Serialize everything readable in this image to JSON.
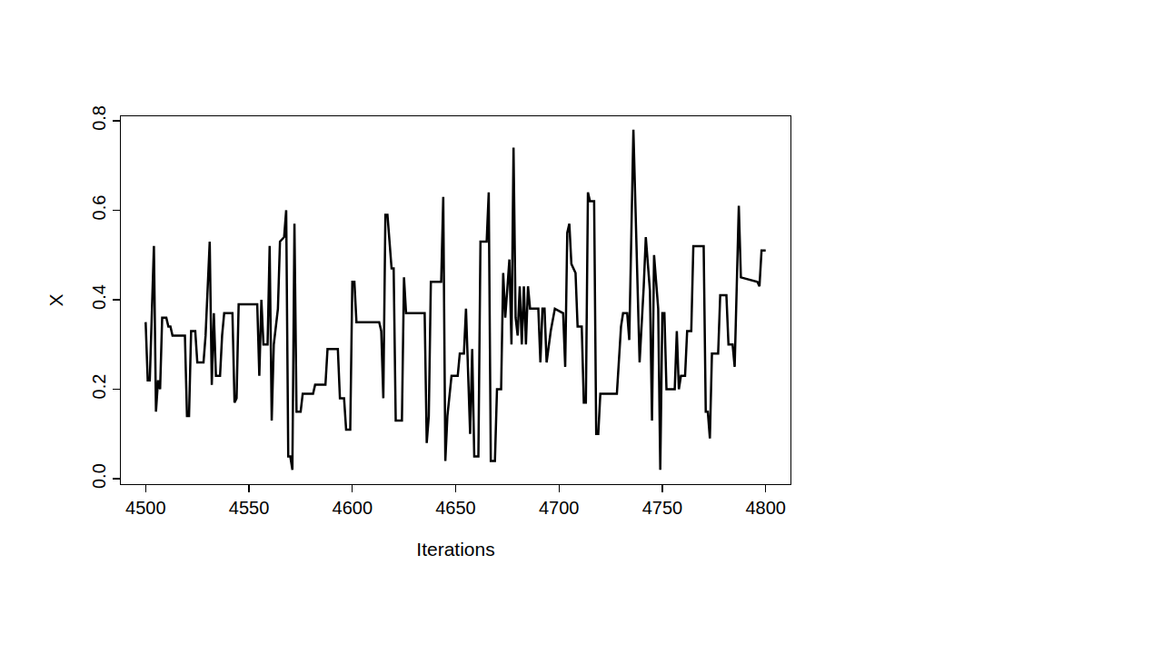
{
  "chart_data": {
    "type": "line",
    "x_label": "Iterations",
    "y_label": "X",
    "color": "#000000",
    "grid": false,
    "xlim": [
      4488,
      4812
    ],
    "ylim": [
      -0.012,
      0.81
    ],
    "xticks": [
      4500,
      4550,
      4600,
      4650,
      4700,
      4750,
      4800
    ],
    "yticks": [
      {
        "value": 0,
        "label": "0.0"
      },
      0.2,
      0.4,
      0.6,
      0.8
    ],
    "x": [
      4500,
      4501,
      4502,
      4504,
      4505,
      4506,
      4507,
      4508,
      4510,
      4511,
      4512,
      4513,
      4519,
      4520,
      4521,
      4522,
      4524,
      4525,
      4528,
      4529,
      4531,
      4532,
      4533,
      4534,
      4536,
      4537,
      4538,
      4542,
      4543,
      4544,
      4545,
      4554,
      4555,
      4556,
      4557,
      4559,
      4560,
      4561,
      4562,
      4564,
      4565,
      4567,
      4568,
      4569,
      4570,
      4571,
      4572,
      4573,
      4575,
      4576,
      4581,
      4582,
      4587,
      4588,
      4593,
      4594,
      4596,
      4597,
      4599,
      4600,
      4601,
      4602,
      4613,
      4614,
      4615,
      4616,
      4617,
      4619,
      4620,
      4621,
      4624,
      4625,
      4626,
      4635,
      4636,
      4637,
      4638,
      4643,
      4644,
      4645,
      4646,
      4648,
      4651,
      4652,
      4654,
      4655,
      4657,
      4658,
      4659,
      4661,
      4662,
      4665,
      4666,
      4667,
      4669,
      4670,
      4672,
      4673,
      4674,
      4676,
      4677,
      4678,
      4679,
      4680,
      4681,
      4682,
      4683,
      4684,
      4685,
      4686,
      4690,
      4691,
      4692,
      4693,
      4694,
      4695,
      4696,
      4698,
      4702,
      4703,
      4704,
      4705,
      4706,
      4708,
      4709,
      4711,
      4712,
      4713,
      4714,
      4715,
      4717,
      4718,
      4719,
      4720,
      4728,
      4730,
      4731,
      4733,
      4734,
      4736,
      4738,
      4739,
      4741,
      4742,
      4744,
      4745,
      4746,
      4748,
      4749,
      4750,
      4751,
      4752,
      4756,
      4757,
      4758,
      4759,
      4761,
      4762,
      4764,
      4765,
      4770,
      4771,
      4772,
      4773,
      4774,
      4777,
      4778,
      4781,
      4782,
      4784,
      4785,
      4787,
      4788,
      4796,
      4797,
      4798,
      4800
    ],
    "values": [
      0.35,
      0.22,
      0.22,
      0.52,
      0.15,
      0.22,
      0.2,
      0.36,
      0.36,
      0.34,
      0.34,
      0.32,
      0.32,
      0.14,
      0.14,
      0.33,
      0.33,
      0.26,
      0.26,
      0.32,
      0.53,
      0.21,
      0.37,
      0.23,
      0.23,
      0.32,
      0.37,
      0.37,
      0.17,
      0.18,
      0.39,
      0.39,
      0.23,
      0.4,
      0.3,
      0.3,
      0.52,
      0.13,
      0.3,
      0.38,
      0.53,
      0.54,
      0.6,
      0.05,
      0.05,
      0.02,
      0.57,
      0.15,
      0.15,
      0.19,
      0.19,
      0.21,
      0.21,
      0.29,
      0.29,
      0.18,
      0.18,
      0.11,
      0.11,
      0.44,
      0.44,
      0.35,
      0.35,
      0.33,
      0.18,
      0.59,
      0.59,
      0.47,
      0.47,
      0.13,
      0.13,
      0.45,
      0.37,
      0.37,
      0.08,
      0.14,
      0.44,
      0.44,
      0.63,
      0.04,
      0.14,
      0.23,
      0.23,
      0.28,
      0.28,
      0.38,
      0.1,
      0.29,
      0.05,
      0.05,
      0.53,
      0.53,
      0.64,
      0.04,
      0.04,
      0.2,
      0.2,
      0.46,
      0.36,
      0.49,
      0.3,
      0.74,
      0.36,
      0.32,
      0.43,
      0.3,
      0.43,
      0.3,
      0.43,
      0.38,
      0.38,
      0.26,
      0.38,
      0.38,
      0.26,
      0.3,
      0.33,
      0.38,
      0.37,
      0.25,
      0.55,
      0.57,
      0.48,
      0.46,
      0.34,
      0.34,
      0.17,
      0.17,
      0.64,
      0.62,
      0.62,
      0.1,
      0.1,
      0.19,
      0.19,
      0.34,
      0.37,
      0.37,
      0.31,
      0.78,
      0.44,
      0.26,
      0.43,
      0.54,
      0.42,
      0.13,
      0.5,
      0.38,
      0.02,
      0.37,
      0.37,
      0.2,
      0.2,
      0.33,
      0.2,
      0.23,
      0.23,
      0.33,
      0.33,
      0.52,
      0.52,
      0.15,
      0.15,
      0.09,
      0.28,
      0.28,
      0.41,
      0.41,
      0.3,
      0.3,
      0.25,
      0.61,
      0.45,
      0.44,
      0.43,
      0.51,
      0.51
    ]
  }
}
